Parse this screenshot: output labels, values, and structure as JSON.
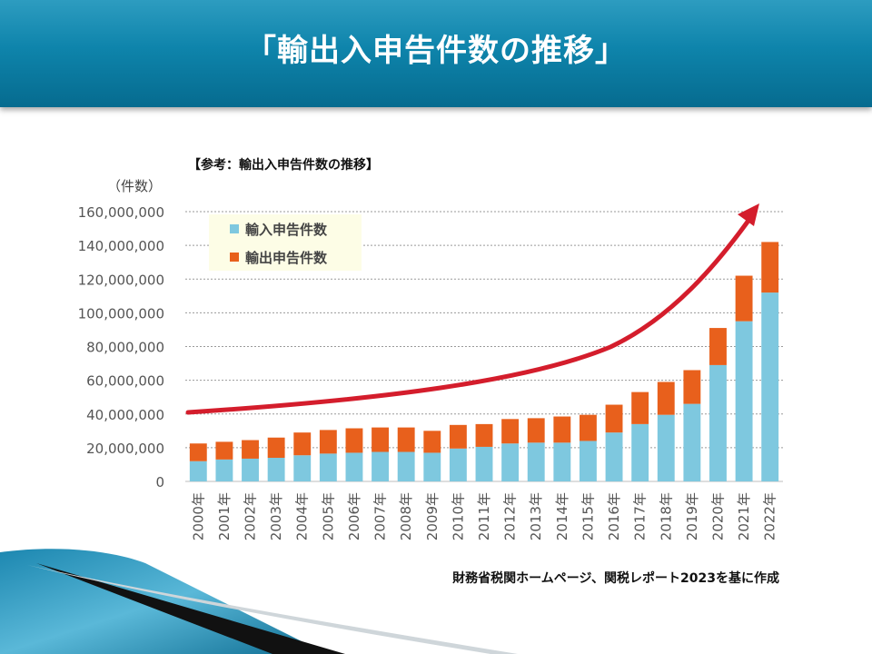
{
  "slide": {
    "title": "「輸出入申告件数の推移」"
  },
  "chart_data": {
    "type": "bar",
    "stacked": true,
    "title": "【参考：輸出入申告件数の推移】",
    "unit_label": "（件数）",
    "source": "財務省税関ホームページ、関税レポート2023を基に作成",
    "categories": [
      "2000年",
      "2001年",
      "2002年",
      "2003年",
      "2004年",
      "2005年",
      "2006年",
      "2007年",
      "2008年",
      "2009年",
      "2010年",
      "2011年",
      "2012年",
      "2013年",
      "2014年",
      "2015年",
      "2016年",
      "2017年",
      "2018年",
      "2019年",
      "2020年",
      "2021年",
      "2022年"
    ],
    "series": [
      {
        "name": "輸入申告件数",
        "color": "#7ec8df",
        "values": [
          12000000,
          13000000,
          13500000,
          14000000,
          15500000,
          16500000,
          17000000,
          17500000,
          17500000,
          17000000,
          19500000,
          20500000,
          22500000,
          23000000,
          23000000,
          24000000,
          29000000,
          34000000,
          39500000,
          46000000,
          69000000,
          95000000,
          112000000
        ]
      },
      {
        "name": "輸出申告件数",
        "color": "#e8601c",
        "values": [
          10500000,
          10500000,
          11000000,
          12000000,
          13500000,
          14000000,
          14500000,
          14500000,
          14500000,
          13000000,
          14000000,
          13500000,
          14500000,
          14500000,
          15500000,
          15500000,
          16500000,
          19000000,
          19500000,
          20000000,
          22000000,
          27000000,
          30000000
        ]
      }
    ],
    "yticks": [
      "0",
      "20,000,000",
      "40,000,000",
      "60,000,000",
      "80,000,000",
      "100,000,000",
      "120,000,000",
      "140,000,000",
      "160,000,000"
    ],
    "ylim": [
      0,
      160000000
    ],
    "grid": true,
    "legend_placement": "top-left",
    "legend_background": "#fdfde6",
    "trend_arrow_color": "#d41d2c"
  }
}
